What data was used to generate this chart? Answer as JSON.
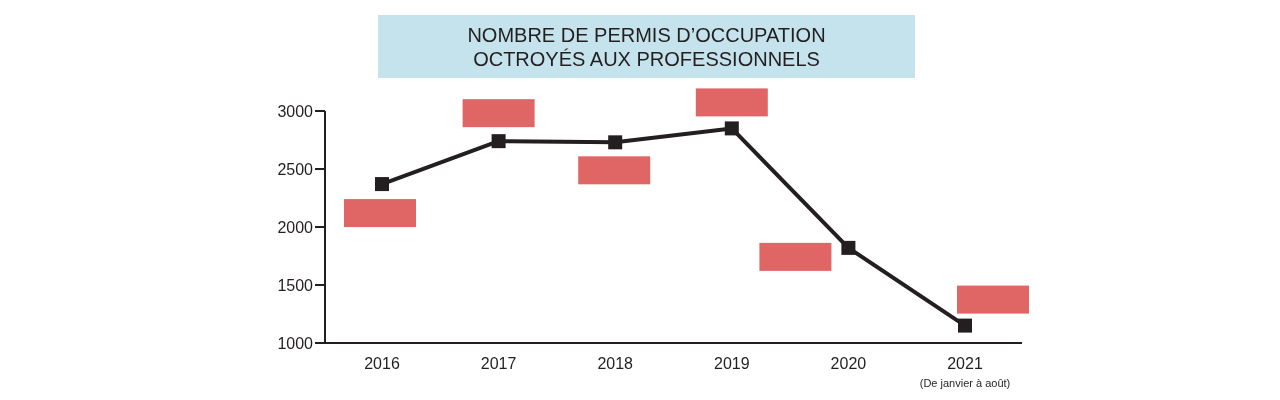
{
  "chart_data": {
    "type": "line",
    "title": "NOMBRE DE PERMIS D’OCCUPATION\nOCTROYÉS AUX PROFESSIONNELS",
    "categories": [
      "2016",
      "2017",
      "2018",
      "2019",
      "2020",
      "2021"
    ],
    "series": [
      {
        "color": "#231f20",
        "values": [
          2370,
          2740,
          2730,
          2850,
          1820,
          1150
        ]
      }
    ],
    "ylim": [
      1000,
      3000
    ],
    "yticks": [
      1000,
      1500,
      2000,
      2500,
      3000
    ],
    "marker": "square",
    "line_style": "solid",
    "annotations": [
      "(De janvier à août)"
    ]
  }
}
